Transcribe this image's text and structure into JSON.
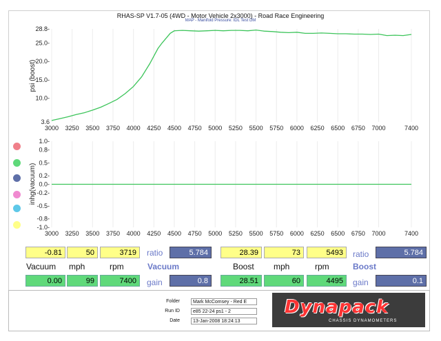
{
  "header": {
    "title": "RHAS-SP V1.7-05   (4WD - Motor Vehicle 2x3000) - Road Race Engineering",
    "subtitle": "MAP - Manifold Pressure: IDL Test DM"
  },
  "chart_data": [
    {
      "type": "line",
      "ylabel": "psi (boost)",
      "xlabel": "",
      "xlim": [
        3000,
        7400
      ],
      "ylim": [
        3.6,
        28.8
      ],
      "x_ticks": [
        "3000",
        "3250",
        "3500",
        "3750",
        "4000",
        "4250",
        "4500",
        "4750",
        "5000",
        "5250",
        "5500",
        "5750",
        "6000",
        "6250",
        "6500",
        "6750",
        "7000",
        "7400"
      ],
      "y_ticks": [
        "3.6",
        "10.0-",
        "15.0-",
        "20.0-",
        "25.0-",
        "28.8-"
      ],
      "series": [
        {
          "color": "#3cc45a",
          "x": [
            3000,
            3100,
            3200,
            3300,
            3400,
            3500,
            3600,
            3700,
            3800,
            3900,
            4000,
            4100,
            4200,
            4300,
            4350,
            4400,
            4450,
            4500,
            4600,
            4700,
            4800,
            4900,
            5000,
            5100,
            5200,
            5300,
            5400,
            5500,
            5600,
            5700,
            5800,
            5900,
            6000,
            6100,
            6200,
            6300,
            6400,
            6500,
            6600,
            6700,
            6800,
            6900,
            7000,
            7100,
            7200,
            7300,
            7400
          ],
          "y": [
            4.0,
            4.5,
            5.0,
            5.6,
            6.1,
            6.8,
            7.6,
            8.6,
            9.7,
            11.3,
            13.2,
            15.8,
            19.4,
            23.5,
            25.0,
            26.3,
            27.6,
            28.3,
            28.4,
            28.3,
            28.2,
            28.3,
            28.4,
            28.3,
            28.4,
            28.4,
            28.3,
            28.5,
            28.2,
            28.1,
            27.9,
            27.8,
            27.9,
            27.6,
            27.6,
            27.7,
            27.6,
            27.5,
            27.5,
            27.4,
            27.4,
            27.3,
            27.4,
            27.0,
            27.1,
            27.0,
            27.3
          ]
        }
      ]
    },
    {
      "type": "line",
      "ylabel": "inhg(vacuum)",
      "xlabel": "",
      "xlim": [
        3000,
        7400
      ],
      "ylim": [
        -1.0,
        1.0
      ],
      "x_ticks": [
        "3000",
        "3250",
        "3500",
        "3750",
        "4000",
        "4250",
        "4500",
        "4750",
        "5000",
        "5250",
        "5500",
        "5750",
        "6000",
        "6250",
        "6500",
        "6750",
        "7000",
        "7400"
      ],
      "y_ticks": [
        "1.0-",
        "0.8-",
        "0.5-",
        "0.2-",
        "0.0-",
        "-0.2-",
        "-0.5-",
        "-0.8-",
        "-1.0-"
      ],
      "series": [
        {
          "color": "#3cc45a",
          "x": [
            3000,
            7400
          ],
          "y": [
            0.0,
            0.0
          ]
        }
      ]
    }
  ],
  "legend_dots": [
    "#f0808a",
    "#5fd97a",
    "#5e6fa8",
    "#f08ad0",
    "#5ec8e8",
    "#ffff88"
  ],
  "readouts": {
    "row1_left": [
      "-0.81",
      "50",
      "3719"
    ],
    "row1_ratio_label": "ratio",
    "row1_ratio_left": "5.784",
    "row1_right": [
      "28.39",
      "73",
      "5493"
    ],
    "row1_ratio_right": "5.784",
    "labels_left": [
      "Vacuum",
      "mph",
      "rpm",
      "Vacuum"
    ],
    "labels_right": [
      "Boost",
      "mph",
      "rpm",
      "Boost"
    ],
    "row3_left": [
      "0.00",
      "99",
      "7400"
    ],
    "row3_gain_label": "gain",
    "row3_gain_left": "0.8",
    "row3_right": [
      "28.51",
      "60",
      "4495"
    ],
    "row3_gain_right": "0.1"
  },
  "footer": {
    "folder_label": "Folder",
    "folder_value": "Mark McComsey - Red E",
    "run_label": "Run ID",
    "run_value": "e85 22-24 ps1 - 2",
    "date_label": "Date",
    "date_value": "13-Jan-2008  18:24:13",
    "logo_text": "Dynapack",
    "logo_sub": "CHASSIS DYNAMOMETERS"
  }
}
